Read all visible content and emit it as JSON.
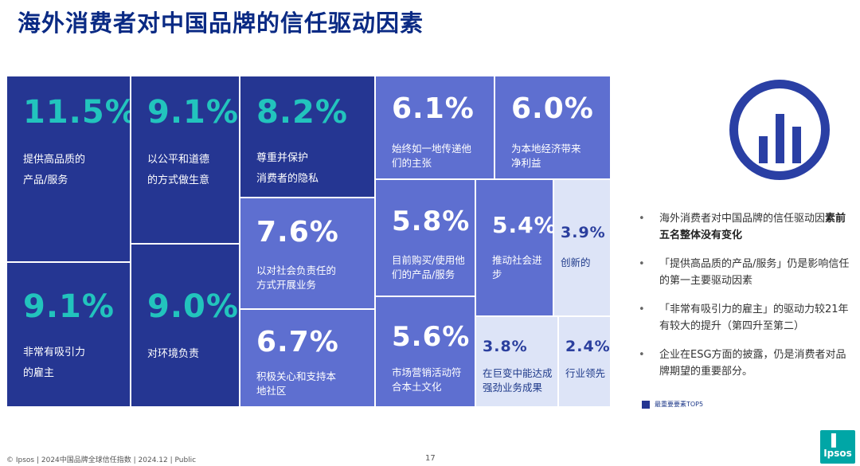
{
  "title": "海外消费者对中国品牌的信任驱动因素",
  "chart_data": {
    "type": "treemap",
    "items": [
      {
        "value": "11.5%",
        "label": "提供高品质的\n产品/服务",
        "top5": true
      },
      {
        "value": "9.1%",
        "label": "以公平和道德\n的方式做生意",
        "top5": true
      },
      {
        "value": "8.2%",
        "label": "尊重并保护\n消费者的隐私",
        "top5": true
      },
      {
        "value": "6.1%",
        "label": "始终如一地传递他\n们的主张",
        "top5": false
      },
      {
        "value": "6.0%",
        "label": "为本地经济带来\n净利益",
        "top5": false
      },
      {
        "value": "9.1%",
        "label": "非常有吸引力\n的雇主",
        "top5": true
      },
      {
        "value": "9.0%",
        "label": "对环境负责",
        "top5": true
      },
      {
        "value": "7.6%",
        "label": "以对社会负责任的\n方式开展业务",
        "top5": false
      },
      {
        "value": "6.7%",
        "label": "积极关心和支持本\n地社区",
        "top5": false
      },
      {
        "value": "5.8%",
        "label": "目前购买/使用他\n们的产品/服务",
        "top5": false
      },
      {
        "value": "5.6%",
        "label": "市场营销活动符\n合本土文化",
        "top5": false
      },
      {
        "value": "5.4%",
        "label": "推动社会进步",
        "top5": false
      },
      {
        "value": "3.9%",
        "label": "创新的",
        "top5": false
      },
      {
        "value": "3.8%",
        "label": "在巨变中能达成\n强劲业务成果",
        "top5": false
      },
      {
        "value": "2.4%",
        "label": "行业领先",
        "top5": false
      }
    ],
    "legend": "最重要要素TOP5",
    "colors": {
      "top5": "#253692",
      "mid": "#5e6fd0",
      "light": "#dde4f7",
      "value_top5": "#22c4bd",
      "value_light": "#2b3f9e",
      "white": "#ffffff"
    }
  },
  "notes": [
    {
      "text": "海外消费者对中国品牌的信任驱动因",
      "bold": "素前五名整体没有变化"
    },
    {
      "text": "「提供高品质的产品/服务」仍是影响信任的第一主要驱动因素",
      "bold": ""
    },
    {
      "text": "「非常有吸引力的雇主」的驱动力较21年有较大的提升（第四升至第二）",
      "bold": ""
    },
    {
      "text": "企业在ESG方面的披露，仍是消费者对品牌期望的重要部分。",
      "bold": ""
    }
  ],
  "footer": "© Ipsos | 2024中国品牌全球信任指数 | 2024.12 | Public",
  "page_number": "17",
  "logo_text": "Ipsos",
  "icon": "bar-chart-icon"
}
